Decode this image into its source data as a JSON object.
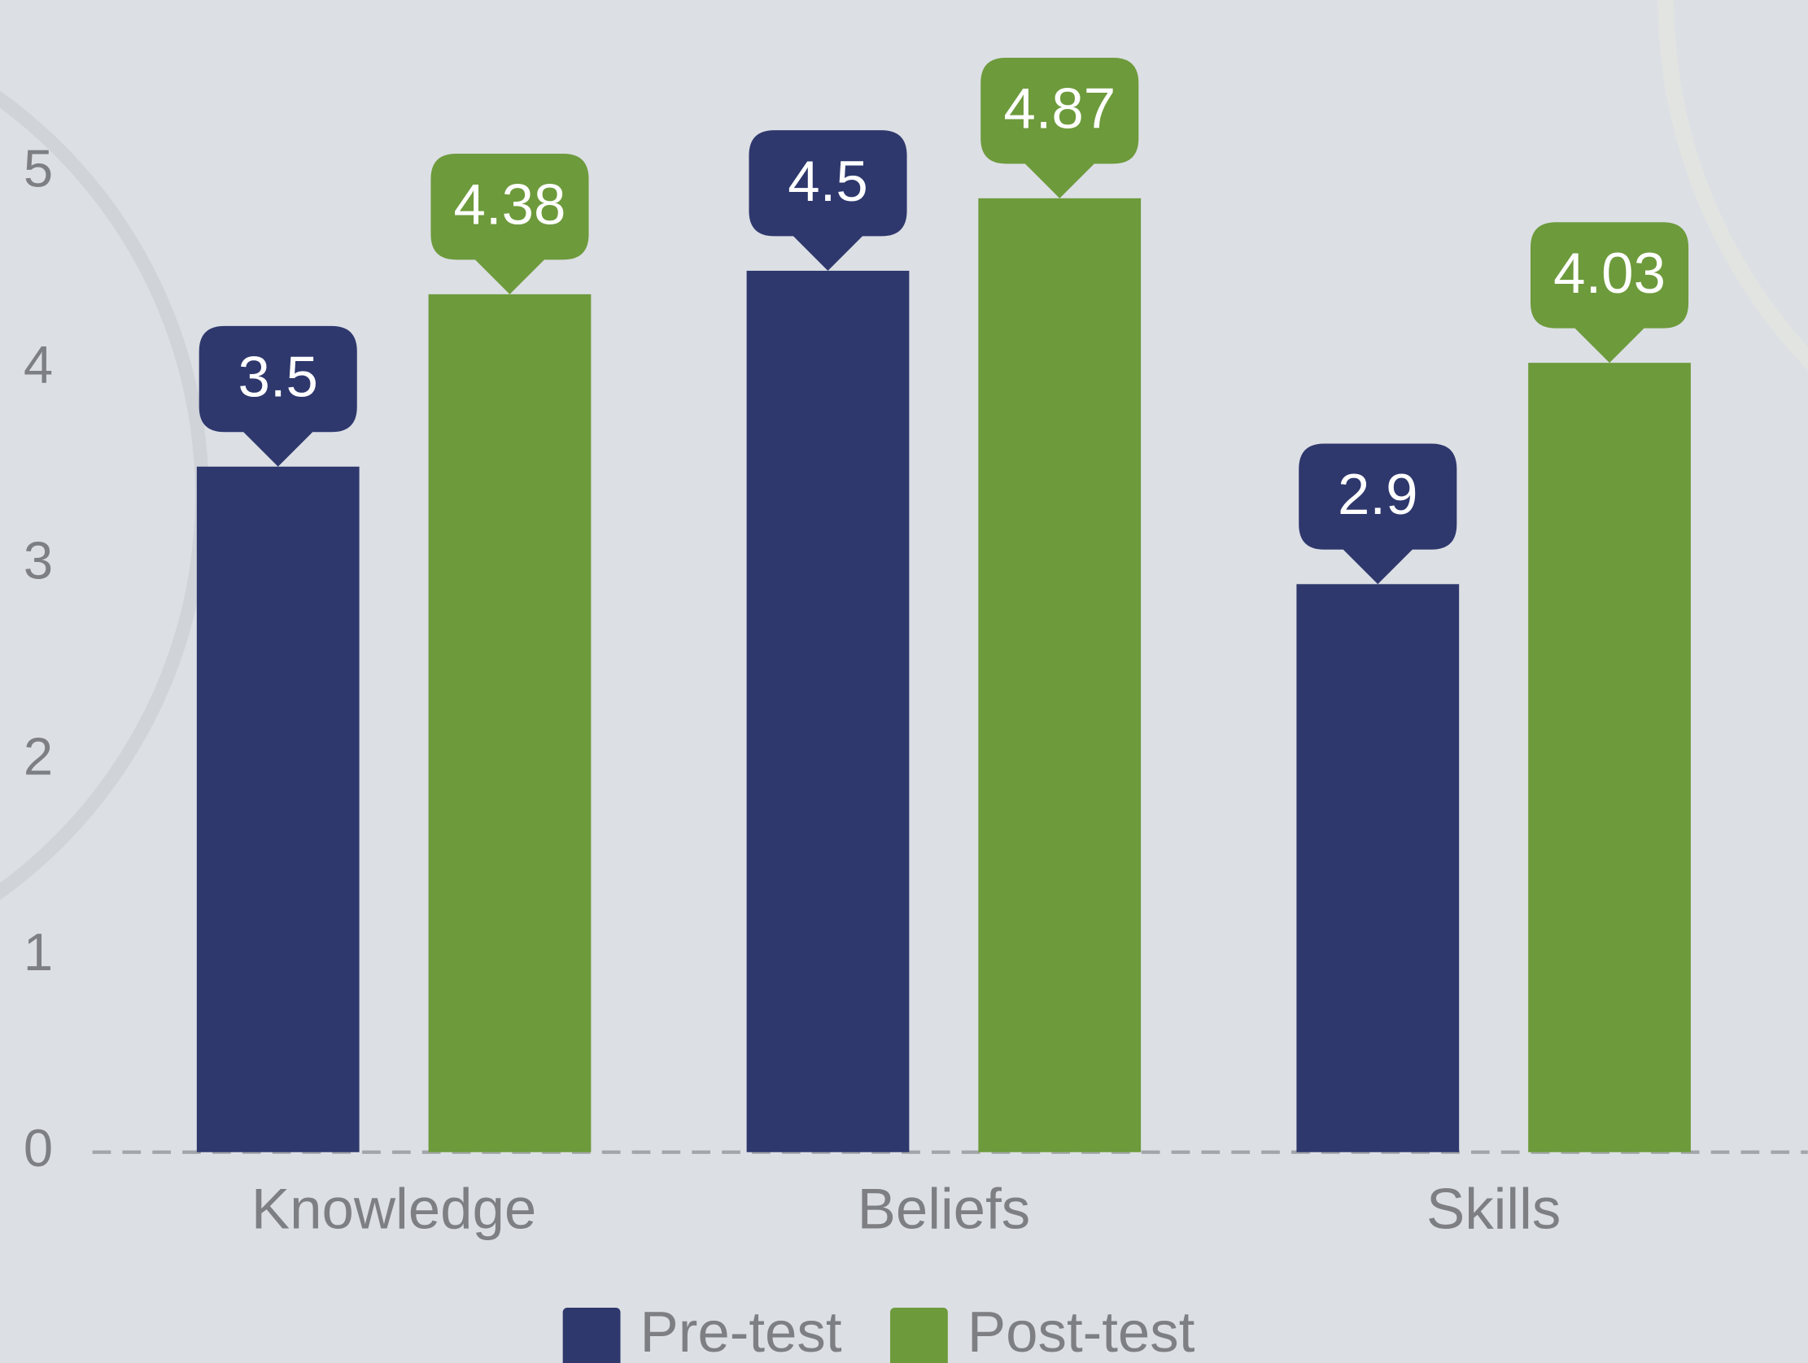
{
  "chart_data": {
    "type": "bar",
    "categories": [
      "Knowledge",
      "Beliefs",
      "Skills"
    ],
    "series": [
      {
        "name": "Pre-test",
        "color": "#2e386d",
        "values": [
          3.5,
          4.5,
          2.9
        ]
      },
      {
        "name": "Post-test",
        "color": "#6d9a3b",
        "values": [
          4.38,
          4.87,
          4.03
        ]
      }
    ],
    "ylim": [
      0,
      5
    ],
    "yticks": [
      0,
      1,
      2,
      3,
      4,
      5
    ],
    "legend": "bottom"
  }
}
